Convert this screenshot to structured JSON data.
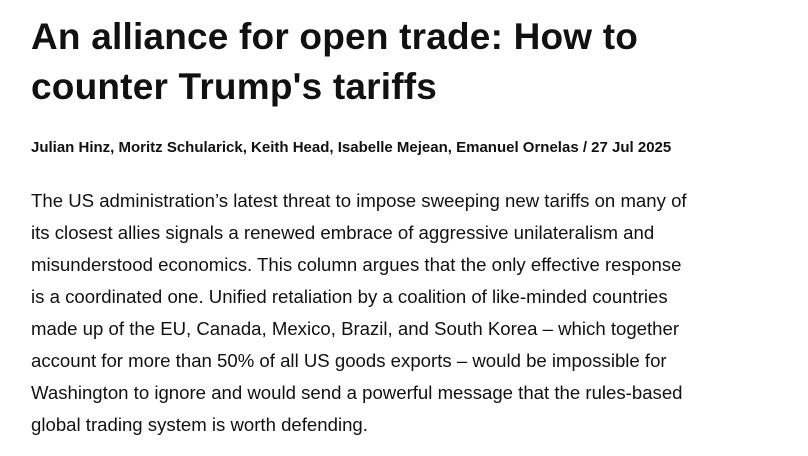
{
  "article": {
    "title_lines": [
      "An alliance for open trade: How to",
      "counter Trump's tariffs"
    ],
    "byline": "Julian Hinz, Moritz Schularick, Keith Head, Isabelle Mejean, Emanuel Ornelas / 27 Jul 2025",
    "abstract_lines": [
      "The US administration’s latest threat to impose sweeping new tariffs on many of",
      "its closest allies signals a renewed embrace of aggressive unilateralism and",
      "misunderstood economics. This column argues that the only effective response",
      "is a coordinated one. Unified retaliation by a coalition of like-minded countries",
      "made up of the EU, Canada, Mexico, Brazil, and South Korea – which together",
      "account for more than 50% of all US goods exports – would be impossible for",
      "Washington to ignore and would send a powerful message that the rules-based",
      "global trading system is worth defending."
    ]
  }
}
